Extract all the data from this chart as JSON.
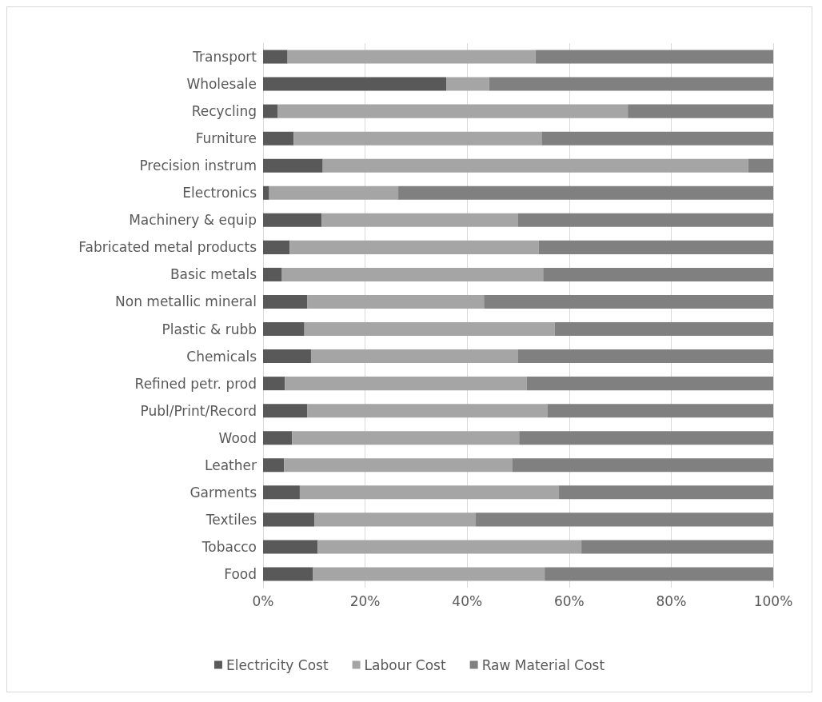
{
  "chart_data": {
    "type": "bar",
    "orientation": "horizontal",
    "stacked": true,
    "categories": [
      "Transport",
      "Wholesale",
      "Recycling",
      "Furniture",
      "Precision instrum",
      "Electronics",
      "Machinery & equip",
      "Fabricated metal products",
      "Basic metals",
      "Non metallic mineral",
      "Plastic & rubb",
      "Chemicals",
      "Refined petr. prod",
      "Publ/Print/Record",
      "Wood",
      "Leather",
      "Garments",
      "Textiles",
      "Tobacco",
      "Food"
    ],
    "series": [
      {
        "name": "Electricity Cost",
        "color": "#595959",
        "values": [
          4.8,
          35.9,
          2.9,
          6.0,
          11.7,
          1.2,
          11.5,
          5.2,
          3.7,
          8.7,
          8.1,
          9.4,
          4.3,
          8.7,
          5.7,
          4.1,
          7.2,
          10.1,
          10.7,
          9.8
        ]
      },
      {
        "name": "Labour Cost",
        "color": "#a5a5a5",
        "values": [
          48.6,
          8.4,
          68.6,
          48.6,
          83.4,
          25.3,
          38.5,
          48.8,
          51.2,
          34.6,
          49.1,
          40.6,
          47.4,
          47.1,
          44.5,
          44.8,
          50.8,
          31.6,
          51.7,
          45.4
        ]
      },
      {
        "name": "Raw Material Cost",
        "color": "#808080",
        "values": [
          46.6,
          55.7,
          28.5,
          45.4,
          4.9,
          73.5,
          50.0,
          46.0,
          45.1,
          56.7,
          42.8,
          50.0,
          48.3,
          44.2,
          49.8,
          51.1,
          42.0,
          58.3,
          37.6,
          44.8
        ]
      }
    ],
    "xlim": [
      0,
      100
    ],
    "xticks": [
      {
        "value": 0,
        "label": "0%"
      },
      {
        "value": 20,
        "label": "20%"
      },
      {
        "value": 40,
        "label": "40%"
      },
      {
        "value": 60,
        "label": "60%"
      },
      {
        "value": 80,
        "label": "80%"
      },
      {
        "value": 100,
        "label": "100%"
      }
    ],
    "grid": "x",
    "legend": "bottom"
  }
}
